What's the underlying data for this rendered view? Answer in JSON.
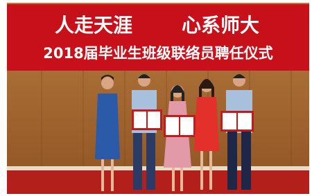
{
  "banner": {
    "slogan": [
      "人走天涯",
      "心系师大"
    ],
    "title": "2018届毕业生班级联络员聘任仪式"
  }
}
